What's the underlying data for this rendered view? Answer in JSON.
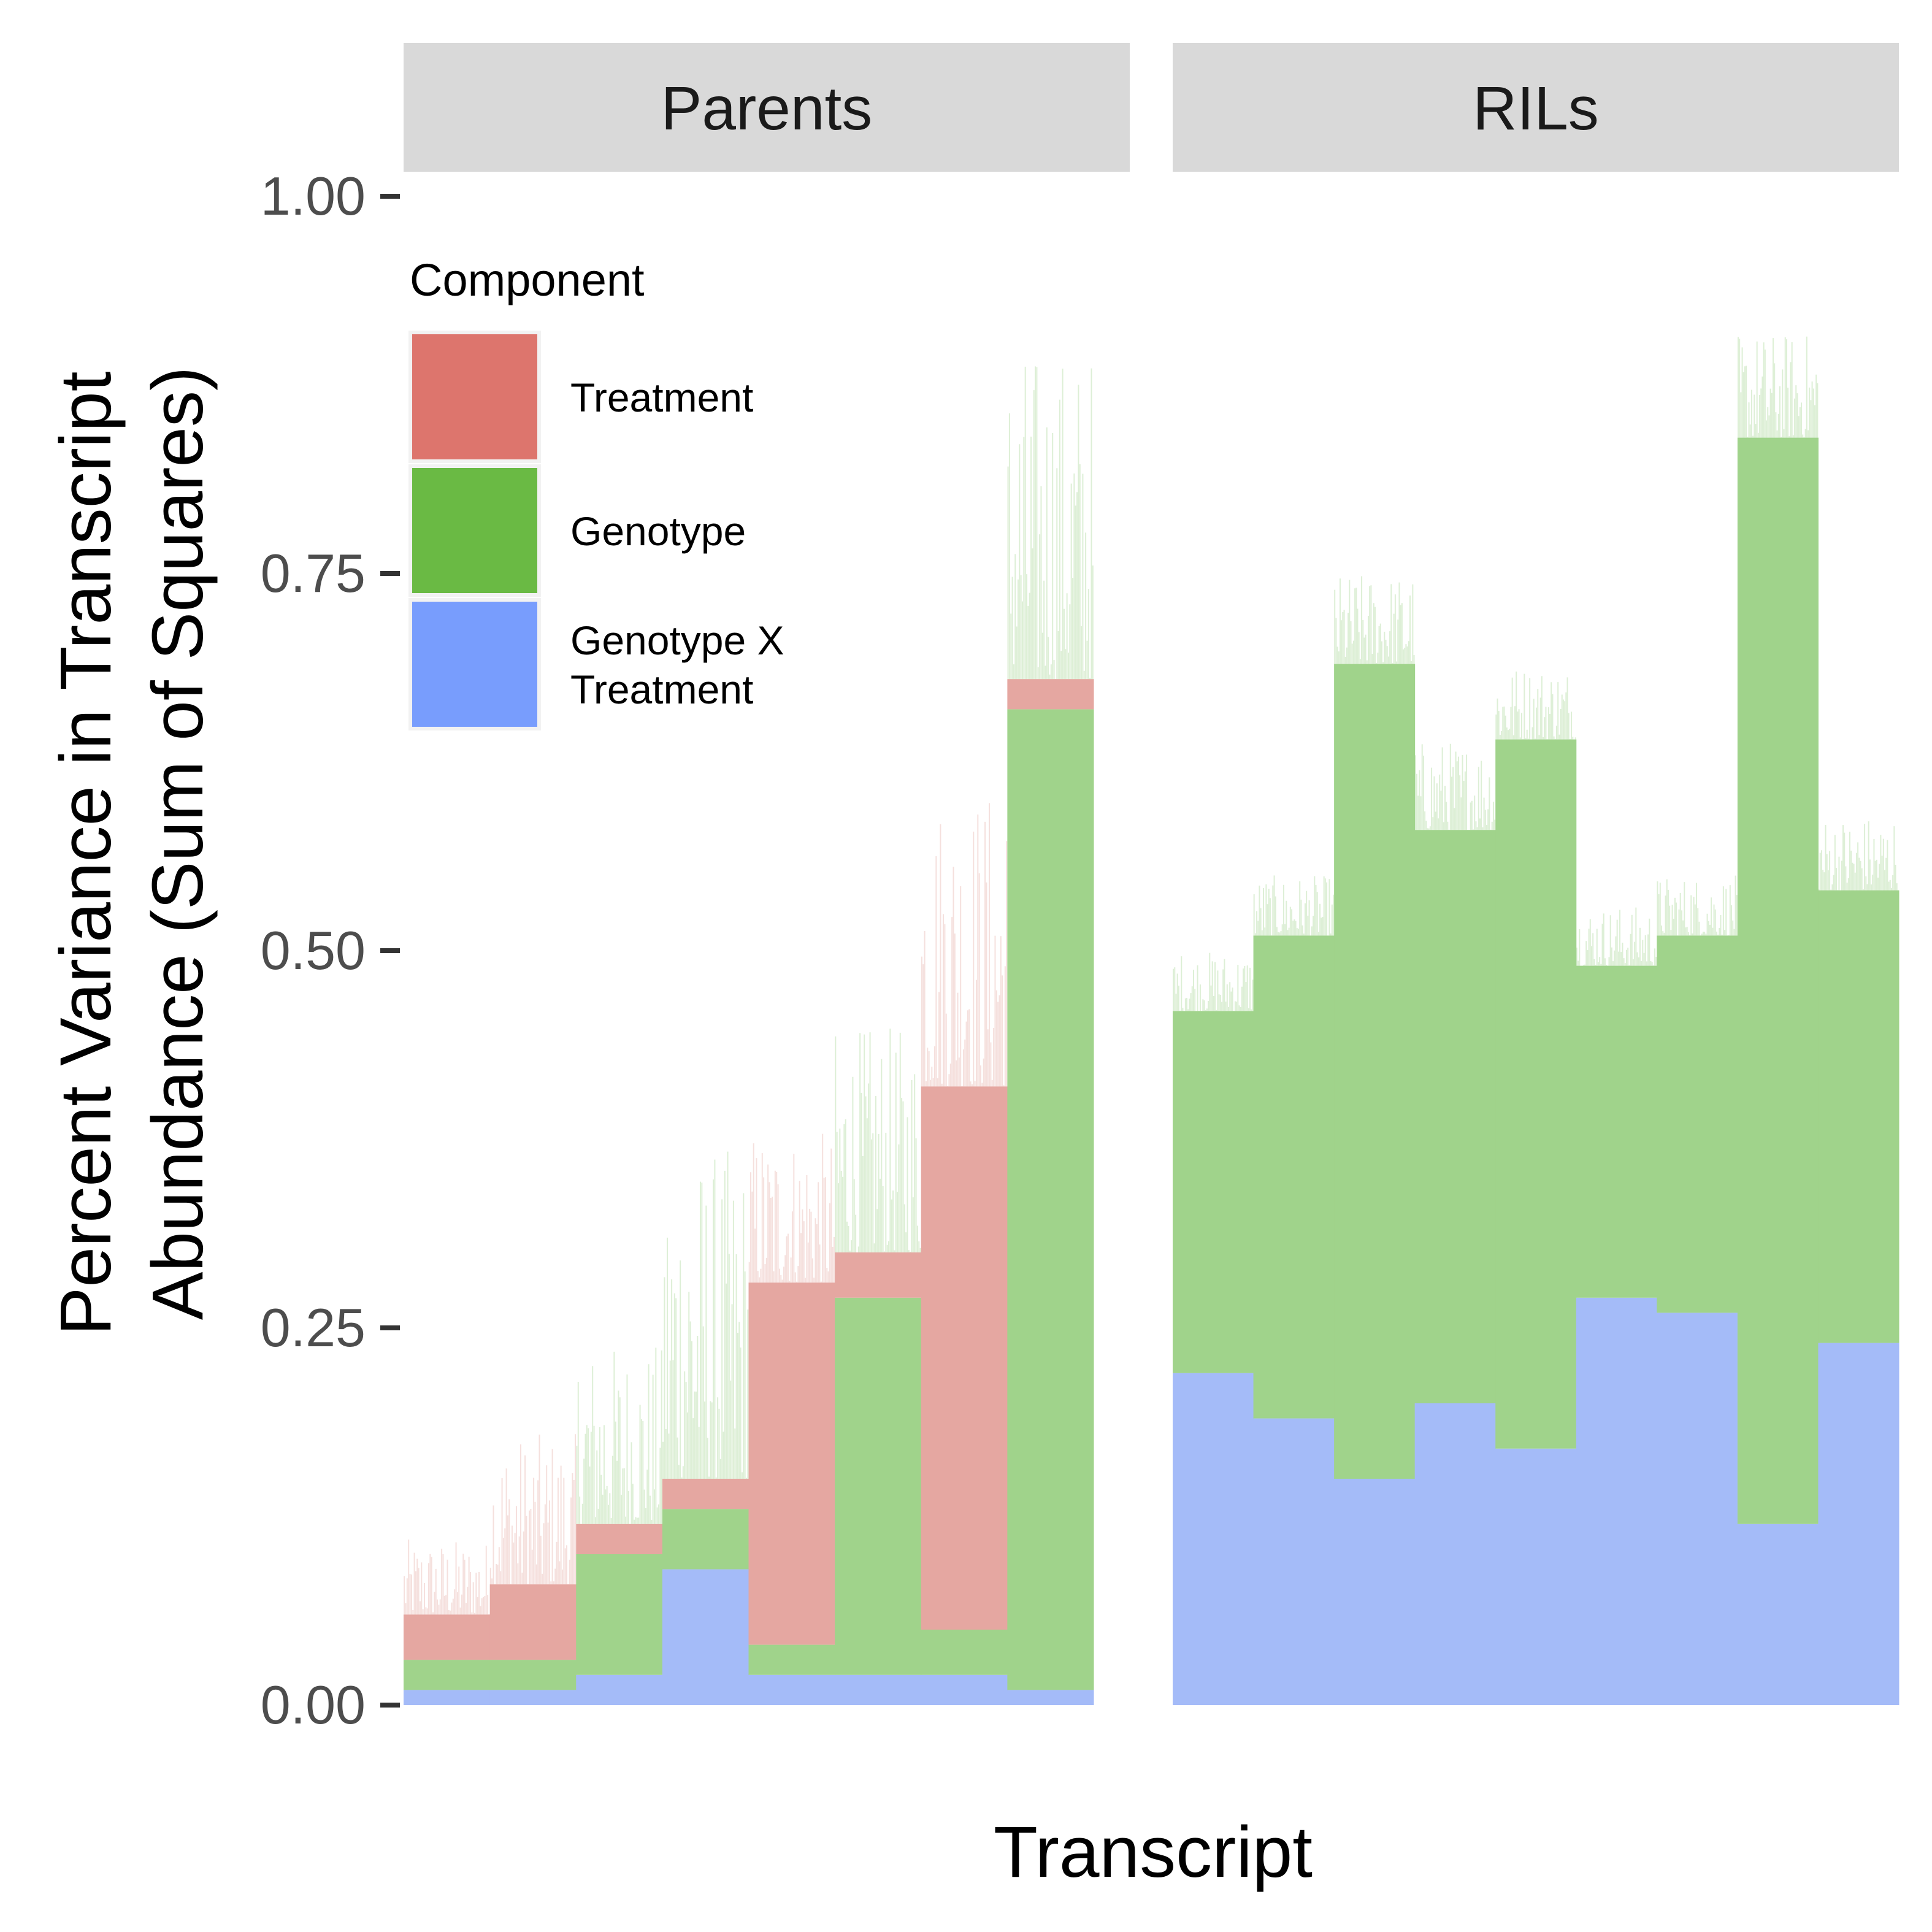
{
  "chart_data": {
    "type": "bar",
    "stacked": true,
    "xlabel": "Transcript",
    "ylabel_lines": [
      "Percent Variance in Transcript",
      "Abundance (Sum of Squares)"
    ],
    "ylim": [
      0,
      1
    ],
    "y_ticks": [
      "0.00",
      "0.25",
      "0.50",
      "0.75",
      "1.00"
    ],
    "y_tick_values": [
      0,
      0.25,
      0.5,
      0.75,
      1.0
    ],
    "grid": false,
    "legend": {
      "title": "Component",
      "placement": "top-left",
      "entries": [
        {
          "label_lines": [
            "Treatment"
          ],
          "color": "#DD756D"
        },
        {
          "label_lines": [
            "Genotype"
          ],
          "color": "#6ABA44"
        },
        {
          "label_lines": [
            "Genotype X",
            "Treatment"
          ],
          "color": "#789DFD"
        }
      ]
    },
    "series_colors": {
      "Genotype X Treatment": "#A4BBF8",
      "Genotype": "#A0D38B",
      "Treatment": "#E5A7A1"
    },
    "facets": [
      {
        "label": "Parents",
        "groups": [
          {
            "gxt": 0.01,
            "genotype": 0.02,
            "treatment": 0.03,
            "tail": 0.05
          },
          {
            "gxt": 0.01,
            "genotype": 0.02,
            "treatment": 0.05,
            "tail": 0.1
          },
          {
            "gxt": 0.02,
            "genotype": 0.08,
            "treatment": 0.02,
            "tail": 0.12
          },
          {
            "gxt": 0.09,
            "genotype": 0.04,
            "treatment": 0.02,
            "tail": 0.22
          },
          {
            "gxt": 0.02,
            "genotype": 0.02,
            "treatment": 0.24,
            "tail": 0.1
          },
          {
            "gxt": 0.02,
            "genotype": 0.25,
            "treatment": 0.03,
            "tail": 0.15
          },
          {
            "gxt": 0.02,
            "genotype": 0.03,
            "treatment": 0.36,
            "tail": 0.2
          },
          {
            "gxt": 0.01,
            "genotype": 0.65,
            "treatment": 0.02,
            "tail": 0.22
          }
        ]
      },
      {
        "label": "RILs",
        "groups": [
          {
            "gxt": 0.22,
            "genotype": 0.24,
            "treatment": 0.0,
            "tail": 0.04
          },
          {
            "gxt": 0.19,
            "genotype": 0.32,
            "treatment": 0.0,
            "tail": 0.04
          },
          {
            "gxt": 0.15,
            "genotype": 0.54,
            "treatment": 0.0,
            "tail": 0.06
          },
          {
            "gxt": 0.2,
            "genotype": 0.38,
            "treatment": 0.0,
            "tail": 0.06
          },
          {
            "gxt": 0.17,
            "genotype": 0.47,
            "treatment": 0.0,
            "tail": 0.05
          },
          {
            "gxt": 0.27,
            "genotype": 0.22,
            "treatment": 0.0,
            "tail": 0.04
          },
          {
            "gxt": 0.26,
            "genotype": 0.25,
            "treatment": 0.0,
            "tail": 0.04
          },
          {
            "gxt": 0.12,
            "genotype": 0.72,
            "treatment": 0.0,
            "tail": 0.07
          },
          {
            "gxt": 0.24,
            "genotype": 0.3,
            "treatment": 0.0,
            "tail": 0.05
          }
        ]
      }
    ]
  }
}
